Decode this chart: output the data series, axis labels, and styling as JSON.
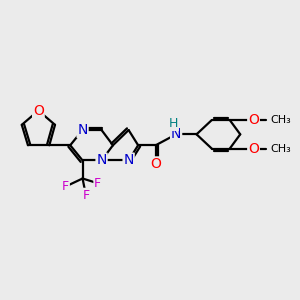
{
  "bg_color": "#ebebeb",
  "bond_color": "#000000",
  "bond_width": 1.6,
  "atom_colors": {
    "N": "#0000cc",
    "O": "#ff0000",
    "F": "#cc00cc",
    "H": "#008080",
    "C": "#000000"
  },
  "font_size": 9
}
